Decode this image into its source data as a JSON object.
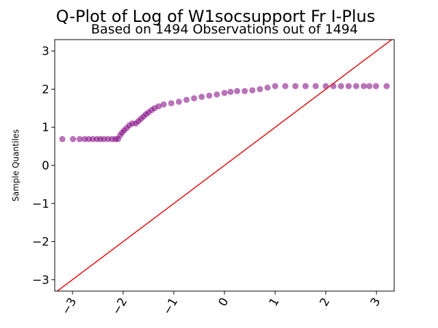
{
  "chart_data": {
    "type": "scatter",
    "title": "Q-Plot of Log of W1socsupport Fr I-Plus",
    "subtitle": "Based on 1494 Observations out of 1494",
    "xlabel": "",
    "ylabel": "Sample Quantiles",
    "xlim": [
      -3.35,
      3.35
    ],
    "ylim": [
      -3.3,
      3.3
    ],
    "x_ticks": [
      "−3",
      "−2",
      "−1",
      "0",
      "1",
      "2",
      "3"
    ],
    "y_ticks": [
      "−3",
      "−2",
      "−1",
      "0",
      "1",
      "2",
      "3"
    ],
    "x_tick_values": [
      -3,
      -2,
      -1,
      0,
      1,
      2,
      3
    ],
    "y_tick_values": [
      -3,
      -2,
      -1,
      0,
      1,
      2,
      3
    ],
    "grid": false,
    "point_color": "#800080",
    "line_color": "#e41a1c",
    "reference_line": {
      "slope": 1,
      "intercept": 0
    },
    "points": [
      {
        "x": -3.2,
        "y": 0.69
      },
      {
        "x": -2.99,
        "y": 0.69
      },
      {
        "x": -2.86,
        "y": 0.69
      },
      {
        "x": -2.76,
        "y": 0.69
      },
      {
        "x": -2.68,
        "y": 0.69
      },
      {
        "x": -2.6,
        "y": 0.69
      },
      {
        "x": -2.52,
        "y": 0.69
      },
      {
        "x": -2.45,
        "y": 0.69
      },
      {
        "x": -2.38,
        "y": 0.69
      },
      {
        "x": -2.3,
        "y": 0.69
      },
      {
        "x": -2.22,
        "y": 0.69
      },
      {
        "x": -2.15,
        "y": 0.69
      },
      {
        "x": -2.1,
        "y": 0.69
      },
      {
        "x": -2.06,
        "y": 0.79
      },
      {
        "x": -2.02,
        "y": 0.86
      },
      {
        "x": -1.98,
        "y": 0.92
      },
      {
        "x": -1.93,
        "y": 0.98
      },
      {
        "x": -1.88,
        "y": 1.05
      },
      {
        "x": -1.82,
        "y": 1.1
      },
      {
        "x": -1.75,
        "y": 1.1
      },
      {
        "x": -1.7,
        "y": 1.16
      },
      {
        "x": -1.65,
        "y": 1.22
      },
      {
        "x": -1.6,
        "y": 1.28
      },
      {
        "x": -1.55,
        "y": 1.34
      },
      {
        "x": -1.5,
        "y": 1.39
      },
      {
        "x": -1.44,
        "y": 1.45
      },
      {
        "x": -1.38,
        "y": 1.5
      },
      {
        "x": -1.3,
        "y": 1.55
      },
      {
        "x": -1.2,
        "y": 1.6
      },
      {
        "x": -1.05,
        "y": 1.63
      },
      {
        "x": -0.9,
        "y": 1.67
      },
      {
        "x": -0.75,
        "y": 1.72
      },
      {
        "x": -0.6,
        "y": 1.76
      },
      {
        "x": -0.45,
        "y": 1.8
      },
      {
        "x": -0.3,
        "y": 1.83
      },
      {
        "x": -0.15,
        "y": 1.86
      },
      {
        "x": 0.0,
        "y": 1.9
      },
      {
        "x": 0.12,
        "y": 1.93
      },
      {
        "x": 0.25,
        "y": 1.95
      },
      {
        "x": 0.4,
        "y": 1.95
      },
      {
        "x": 0.55,
        "y": 1.97
      },
      {
        "x": 0.7,
        "y": 2.0
      },
      {
        "x": 0.85,
        "y": 2.04
      },
      {
        "x": 1.0,
        "y": 2.08
      },
      {
        "x": 1.2,
        "y": 2.08
      },
      {
        "x": 1.4,
        "y": 2.08
      },
      {
        "x": 1.6,
        "y": 2.08
      },
      {
        "x": 1.8,
        "y": 2.08
      },
      {
        "x": 2.0,
        "y": 2.08
      },
      {
        "x": 2.15,
        "y": 2.08
      },
      {
        "x": 2.3,
        "y": 2.08
      },
      {
        "x": 2.45,
        "y": 2.08
      },
      {
        "x": 2.6,
        "y": 2.08
      },
      {
        "x": 2.75,
        "y": 2.08
      },
      {
        "x": 2.86,
        "y": 2.08
      },
      {
        "x": 2.99,
        "y": 2.08
      },
      {
        "x": 3.2,
        "y": 2.08
      }
    ]
  }
}
